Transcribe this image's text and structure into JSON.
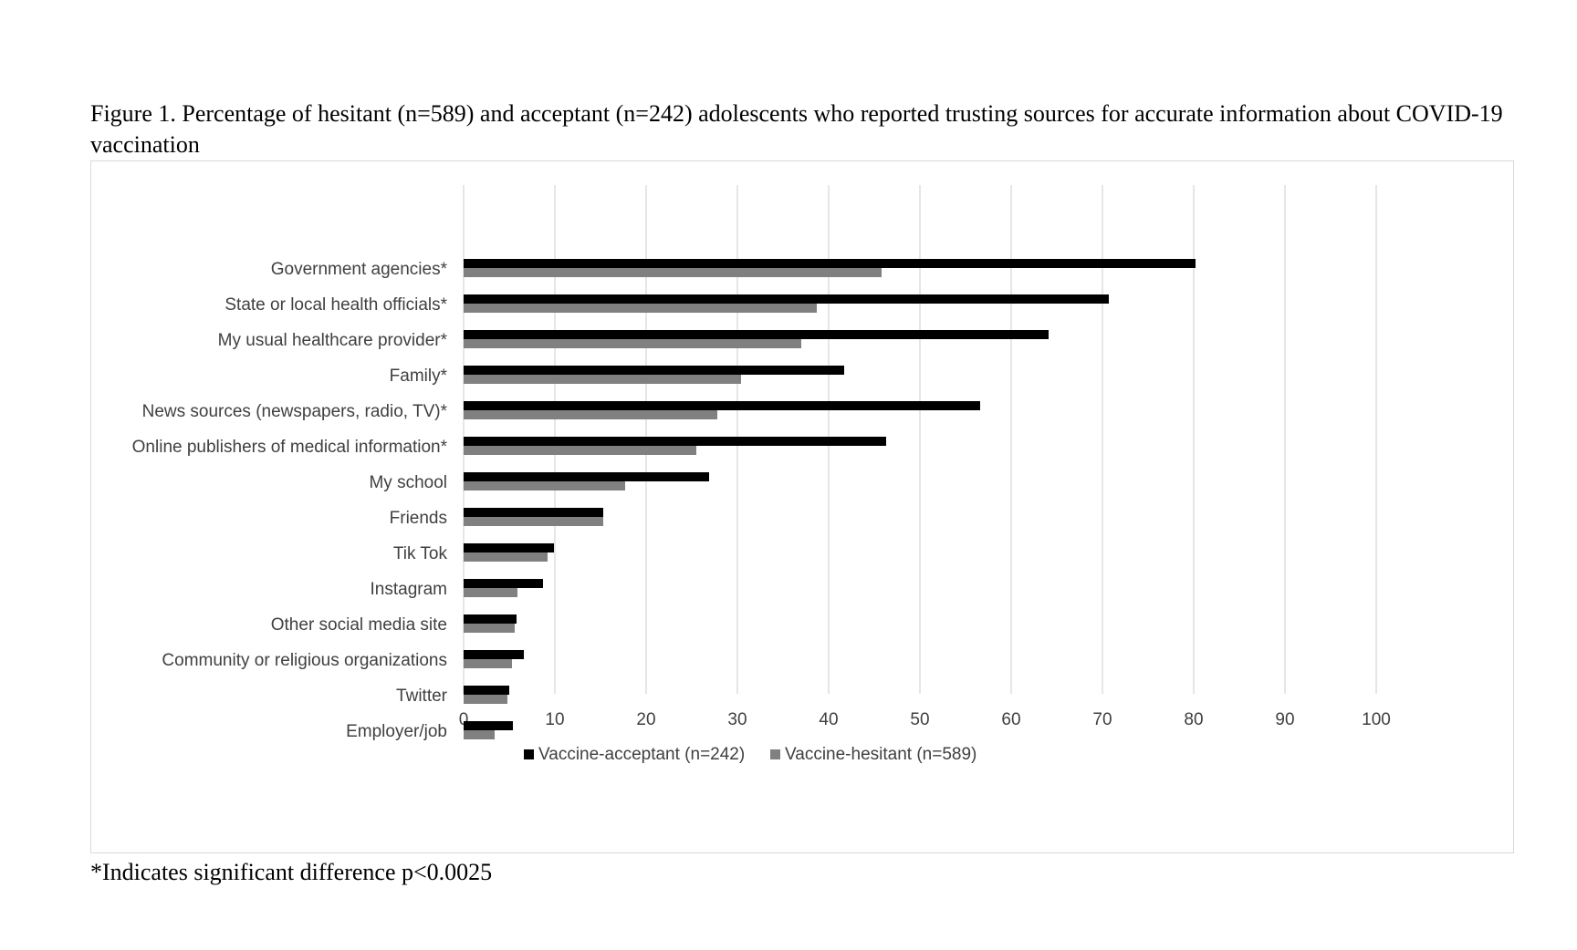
{
  "figure": {
    "title": "Figure 1. Percentage of hesitant (n=589) and acceptant (n=242) adolescents who reported trusting sources for accurate information about COVID-19 vaccination",
    "footnote": "*Indicates significant difference p<0.0025"
  },
  "chart_data": {
    "type": "bar",
    "orientation": "horizontal",
    "title": "Figure 1. Percentage of hesitant (n=589) and acceptant (n=242) adolescents who reported trusting sources for accurate information about COVID-19 vaccination",
    "xlabel": "",
    "ylabel": "",
    "xlim": [
      0,
      100
    ],
    "xticks": [
      0,
      10,
      20,
      30,
      40,
      50,
      60,
      70,
      80,
      90,
      100
    ],
    "grid": "vertical",
    "legend": "bottom",
    "categories": [
      "Government agencies*",
      "State or local health officials*",
      "My usual healthcare provider*",
      "Family*",
      "News sources (newspapers, radio, TV)*",
      "Online publishers of medical information*",
      "My school",
      "Friends",
      "Tik Tok",
      "Instagram",
      "Other social media site",
      "Community or religious organizations",
      "Twitter",
      "Employer/job"
    ],
    "series": [
      {
        "name": "Vaccine-acceptant (n=242)",
        "color": "#000000",
        "values": [
          80.2,
          70.7,
          64.1,
          41.7,
          56.6,
          46.3,
          26.9,
          15.3,
          9.9,
          8.7,
          5.8,
          6.6,
          5.0,
          5.4
        ]
      },
      {
        "name": "Vaccine-hesitant (n=589)",
        "color": "#808080",
        "values": [
          45.8,
          38.7,
          37.0,
          30.4,
          27.8,
          25.5,
          17.7,
          15.3,
          9.2,
          5.9,
          5.6,
          5.3,
          4.8,
          3.4
        ]
      }
    ]
  }
}
